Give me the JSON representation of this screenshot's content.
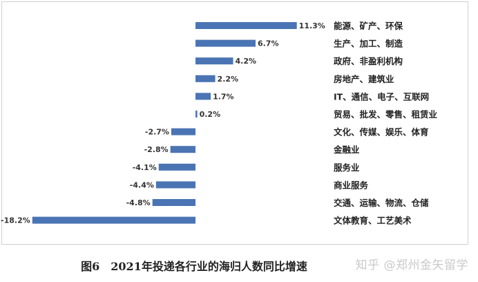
{
  "chart_data": {
    "type": "bar",
    "orientation": "horizontal",
    "categories": [
      "能源、矿产、环保",
      "生产、加工、制造",
      "政府、非盈利机构",
      "房地产、建筑业",
      "IT、通信、电子、互联网",
      "贸易、批发、零售、租赁业",
      "文化、传媒、娱乐、体育",
      "金融业",
      "服务业",
      "商业服务",
      "交通、运输、物流、仓储",
      "文体教育、工艺美术"
    ],
    "values": [
      11.3,
      6.7,
      4.2,
      2.2,
      1.7,
      0.2,
      -2.7,
      -2.8,
      -4.1,
      -4.4,
      -4.8,
      -18.2
    ],
    "value_labels": [
      "11.3%",
      "6.7%",
      "4.2%",
      "2.2%",
      "1.7%",
      "0.2%",
      "-2.7%",
      "-2.8%",
      "-4.1%",
      "-4.4%",
      "-4.8%",
      "-18.2%"
    ],
    "bar_color": "#4a74b4",
    "title": "图6　2021年投递各行业的海归人数同比增速",
    "grid": false,
    "legend": "none"
  },
  "watermark": "知乎 @郑州金矢留学"
}
